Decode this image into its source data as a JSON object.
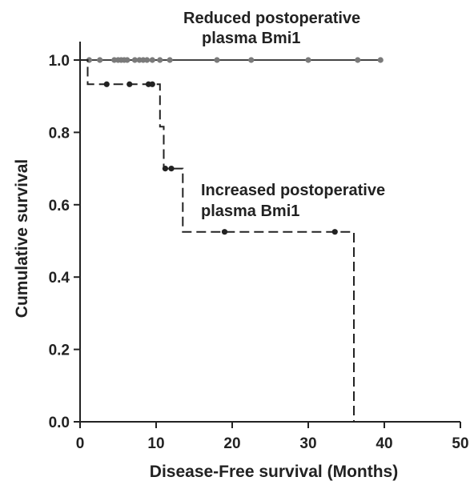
{
  "chart_data": {
    "type": "line",
    "subtype": "kaplan-meier",
    "xlabel": "Disease-Free survival (Months)",
    "ylabel": "Cumulative survival",
    "xlim": [
      0,
      50
    ],
    "ylim": [
      0,
      1.0
    ],
    "xticks": [
      "0",
      "10",
      "20",
      "30",
      "40",
      "50"
    ],
    "yticks": [
      "0.0",
      "0.2",
      "0.4",
      "0.6",
      "0.8",
      "1.0"
    ],
    "grid": false,
    "legend": "none",
    "annotations": [
      {
        "line1": "Reduced postoperative",
        "line2": "plasma Bmi1"
      },
      {
        "line1": "Increased postoperative",
        "line2": "plasma Bmi1"
      }
    ],
    "series": [
      {
        "style": "solid",
        "color": "#444444",
        "marker_color": "#7a7a7a",
        "steps": [
          [
            0,
            1.0
          ],
          [
            39.5,
            1.0
          ]
        ],
        "censored": [
          [
            1.2,
            1.0
          ],
          [
            2.6,
            1.0
          ],
          [
            4.5,
            1.0
          ],
          [
            5.0,
            1.0
          ],
          [
            5.4,
            1.0
          ],
          [
            5.8,
            1.0
          ],
          [
            6.2,
            1.0
          ],
          [
            7.2,
            1.0
          ],
          [
            7.8,
            1.0
          ],
          [
            8.3,
            1.0
          ],
          [
            8.8,
            1.0
          ],
          [
            9.5,
            1.0
          ],
          [
            10.5,
            1.0
          ],
          [
            11.8,
            1.0
          ],
          [
            18.0,
            1.0
          ],
          [
            22.5,
            1.0
          ],
          [
            30.0,
            1.0
          ],
          [
            36.5,
            1.0
          ],
          [
            39.5,
            1.0
          ]
        ]
      },
      {
        "style": "dashed",
        "color": "#222222",
        "marker_color": "#222222",
        "steps": [
          [
            0,
            1.0
          ],
          [
            1.0,
            1.0
          ],
          [
            1.0,
            0.933
          ],
          [
            10.5,
            0.933
          ],
          [
            10.5,
            0.816
          ],
          [
            11.0,
            0.816
          ],
          [
            11.0,
            0.7
          ],
          [
            13.5,
            0.7
          ],
          [
            13.5,
            0.525
          ],
          [
            36.0,
            0.525
          ],
          [
            36.0,
            0.0
          ]
        ],
        "censored": [
          [
            3.5,
            0.933
          ],
          [
            6.5,
            0.933
          ],
          [
            9.0,
            0.933
          ],
          [
            9.5,
            0.933
          ],
          [
            11.2,
            0.7
          ],
          [
            12.0,
            0.7
          ],
          [
            19.0,
            0.525
          ],
          [
            33.5,
            0.525
          ]
        ]
      }
    ]
  }
}
